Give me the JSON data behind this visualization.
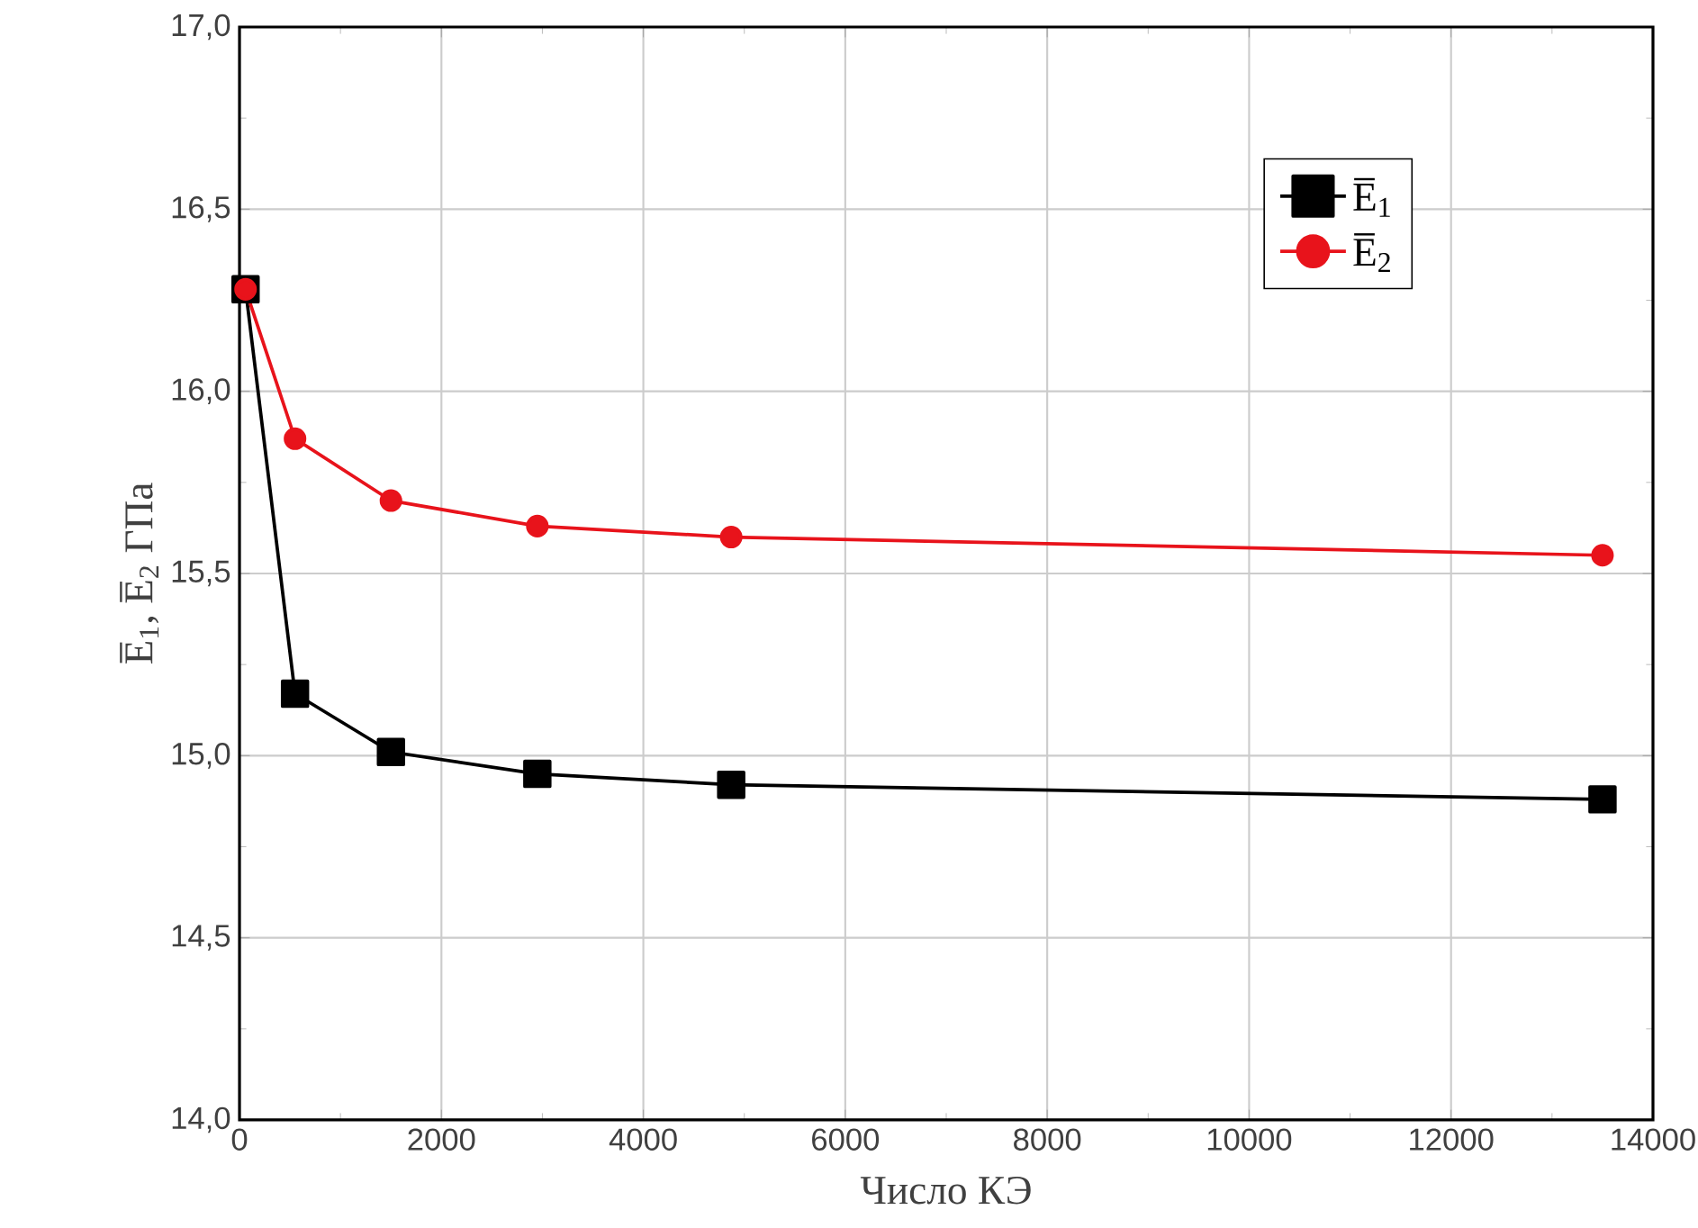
{
  "chart_data": {
    "type": "line",
    "xlabel": "Число КЭ",
    "ylabel": "E̅$_{1}$, E̅$_{2}$ ГПа",
    "x": [
      60,
      550,
      1500,
      2950,
      4870,
      13500
    ],
    "series": [
      {
        "name": "E̅$_{1}$",
        "color": "#000000",
        "marker": "square",
        "values": [
          16.28,
          15.17,
          15.01,
          14.95,
          14.92,
          14.88
        ]
      },
      {
        "name": "E̅$_{2}$",
        "color": "#e8131b",
        "marker": "circle",
        "values": [
          16.28,
          15.87,
          15.7,
          15.63,
          15.6,
          15.55
        ]
      }
    ],
    "xlim": [
      0,
      14000
    ],
    "xticks": [
      0,
      2000,
      4000,
      6000,
      8000,
      10000,
      12000,
      14000
    ],
    "ylim": [
      14.0,
      17.0
    ],
    "yticks": [
      {
        "value": 14.0,
        "label": "14,0"
      },
      {
        "value": 14.5,
        "label": "14,5"
      },
      {
        "value": 15.0,
        "label": "15,0"
      },
      {
        "value": 15.5,
        "label": "15,5"
      },
      {
        "value": 16.0,
        "label": "16,0"
      },
      {
        "value": 16.5,
        "label": "16,5"
      },
      {
        "value": 17.0,
        "label": "17,0"
      }
    ],
    "grid": true,
    "legend": "top right",
    "line_style": "solid"
  }
}
